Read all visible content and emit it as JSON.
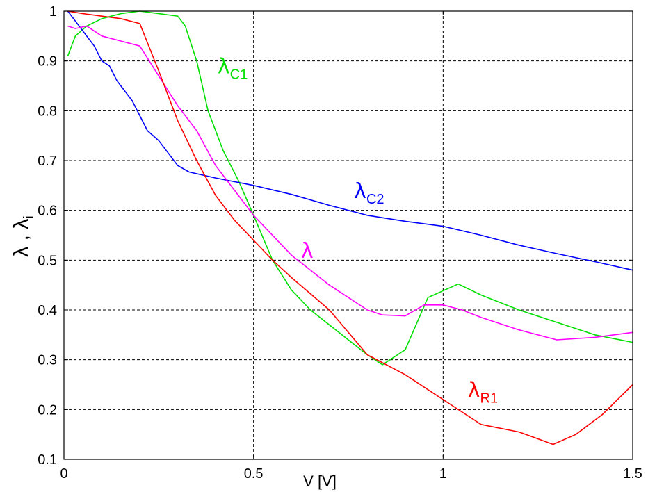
{
  "chart_data": {
    "type": "line",
    "title": "",
    "xlabel": "V  [V]",
    "ylabel_main": "λ , λ",
    "ylabel_sub": "i",
    "xlim": [
      0,
      1.5
    ],
    "ylim": [
      0.1,
      1.0
    ],
    "grid": true,
    "x_ticks": [
      0,
      0.5,
      1,
      1.5
    ],
    "x_tick_labels": [
      "0",
      "0.5",
      "1",
      "1.5"
    ],
    "y_ticks": [
      0.1,
      0.2,
      0.3,
      0.4,
      0.5,
      0.6,
      0.7,
      0.8,
      0.9,
      1.0
    ],
    "y_tick_labels": [
      "0.1",
      "0.2",
      "0.3",
      "0.4",
      "0.5",
      "0.6",
      "0.7",
      "0.8",
      "0.9",
      "1"
    ],
    "series": [
      {
        "name": "λC1",
        "label_main": "λ",
        "label_sub": "C1",
        "color": "#00e000",
        "x": [
          0.01,
          0.03,
          0.06,
          0.1,
          0.15,
          0.2,
          0.25,
          0.3,
          0.32,
          0.35,
          0.38,
          0.42,
          0.46,
          0.5,
          0.55,
          0.6,
          0.65,
          0.7,
          0.75,
          0.8,
          0.84,
          0.9,
          0.96,
          1.04,
          1.1,
          1.2,
          1.3,
          1.4,
          1.5
        ],
        "y": [
          0.91,
          0.95,
          0.97,
          0.985,
          0.995,
          1.0,
          0.995,
          0.99,
          0.97,
          0.9,
          0.8,
          0.72,
          0.66,
          0.59,
          0.5,
          0.44,
          0.4,
          0.37,
          0.34,
          0.31,
          0.29,
          0.32,
          0.425,
          0.452,
          0.43,
          0.4,
          0.375,
          0.35,
          0.335
        ]
      },
      {
        "name": "λC2",
        "label_main": "λ",
        "label_sub": "C2",
        "color": "#0000ff",
        "x": [
          0.01,
          0.03,
          0.05,
          0.08,
          0.1,
          0.12,
          0.14,
          0.16,
          0.18,
          0.2,
          0.22,
          0.25,
          0.28,
          0.3,
          0.33,
          0.4,
          0.5,
          0.6,
          0.7,
          0.8,
          0.9,
          1.0,
          1.1,
          1.2,
          1.3,
          1.4,
          1.5
        ],
        "y": [
          1.0,
          0.98,
          0.96,
          0.93,
          0.9,
          0.89,
          0.86,
          0.84,
          0.82,
          0.79,
          0.76,
          0.74,
          0.71,
          0.69,
          0.677,
          0.665,
          0.65,
          0.632,
          0.61,
          0.59,
          0.578,
          0.568,
          0.55,
          0.53,
          0.513,
          0.497,
          0.48
        ]
      },
      {
        "name": "λ",
        "label_main": "λ",
        "label_sub": "",
        "color": "#ff00ff",
        "x": [
          0.01,
          0.03,
          0.06,
          0.1,
          0.15,
          0.2,
          0.25,
          0.3,
          0.35,
          0.4,
          0.45,
          0.5,
          0.55,
          0.6,
          0.65,
          0.7,
          0.75,
          0.8,
          0.84,
          0.9,
          0.95,
          1.0,
          1.05,
          1.1,
          1.2,
          1.3,
          1.4,
          1.5
        ],
        "y": [
          0.97,
          0.965,
          0.97,
          0.95,
          0.94,
          0.93,
          0.87,
          0.81,
          0.76,
          0.69,
          0.64,
          0.59,
          0.55,
          0.51,
          0.48,
          0.45,
          0.425,
          0.4,
          0.39,
          0.388,
          0.41,
          0.41,
          0.4,
          0.385,
          0.36,
          0.34,
          0.345,
          0.355
        ]
      },
      {
        "name": "λR1",
        "label_main": "λ",
        "label_sub": "R1",
        "color": "#ff0000",
        "x": [
          0.01,
          0.05,
          0.1,
          0.15,
          0.2,
          0.25,
          0.3,
          0.35,
          0.4,
          0.45,
          0.5,
          0.55,
          0.6,
          0.7,
          0.8,
          0.9,
          1.0,
          1.1,
          1.2,
          1.29,
          1.35,
          1.42,
          1.5
        ],
        "y": [
          1.0,
          0.995,
          0.99,
          0.985,
          0.975,
          0.88,
          0.78,
          0.7,
          0.63,
          0.58,
          0.54,
          0.5,
          0.465,
          0.4,
          0.31,
          0.27,
          0.22,
          0.17,
          0.155,
          0.13,
          0.15,
          0.19,
          0.25
        ]
      }
    ],
    "annotations": [
      {
        "series": "λC1",
        "x": 0.405,
        "y": 0.875
      },
      {
        "series": "λC2",
        "x": 0.765,
        "y": 0.625
      },
      {
        "series": "λ",
        "x": 0.625,
        "y": 0.505
      },
      {
        "series": "λR1",
        "x": 1.065,
        "y": 0.225
      }
    ]
  }
}
